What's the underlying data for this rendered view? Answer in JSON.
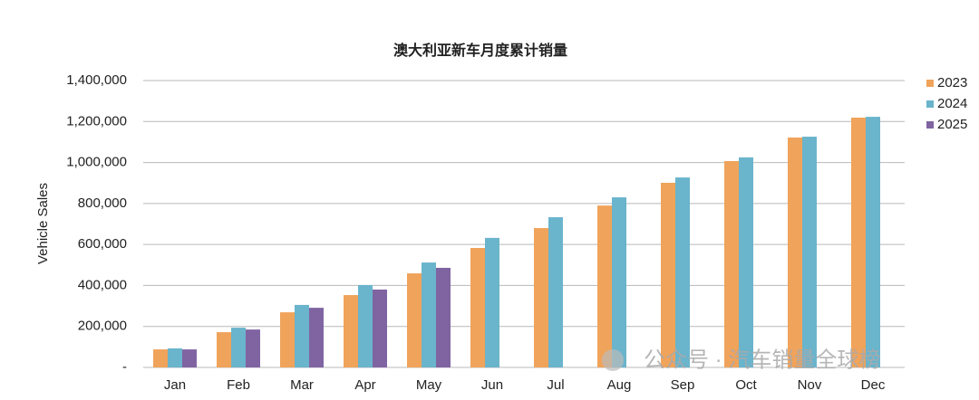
{
  "chart_data": {
    "type": "bar",
    "title": "澳大利亚新车月度累计销量",
    "y_label": "Vehicle Sales",
    "watermark": "公众号 · 汽车销量全球榜",
    "categories": [
      "Jan",
      "Feb",
      "Mar",
      "Apr",
      "May",
      "Jun",
      "Jul",
      "Aug",
      "Sep",
      "Oct",
      "Nov",
      "Dec"
    ],
    "series": [
      {
        "name": "2023",
        "color": "#f0a35a",
        "values": [
          88000,
          172000,
          269000,
          353000,
          459000,
          583000,
          680000,
          790000,
          901000,
          1007000,
          1122000,
          1219000
        ]
      },
      {
        "name": "2024",
        "color": "#6ab4cc",
        "values": [
          93000,
          194000,
          305000,
          402000,
          512000,
          632000,
          733000,
          830000,
          927000,
          1025000,
          1126000,
          1223000
        ]
      },
      {
        "name": "2025",
        "color": "#8064a2",
        "values": [
          88000,
          185000,
          291000,
          380000,
          486000,
          null,
          null,
          null,
          null,
          null,
          null,
          null
        ]
      }
    ],
    "ylim": [
      0,
      1400000
    ],
    "yticks": [
      {
        "value": 0,
        "label": "-"
      },
      {
        "value": 200000,
        "label": "200,000"
      },
      {
        "value": 400000,
        "label": "400,000"
      },
      {
        "value": 600000,
        "label": "600,000"
      },
      {
        "value": 800000,
        "label": "800,000"
      },
      {
        "value": 1000000,
        "label": "1,000,000"
      },
      {
        "value": 1200000,
        "label": "1,200,000"
      },
      {
        "value": 1400000,
        "label": "1,400,000"
      }
    ],
    "grid": true,
    "legend": "right"
  }
}
